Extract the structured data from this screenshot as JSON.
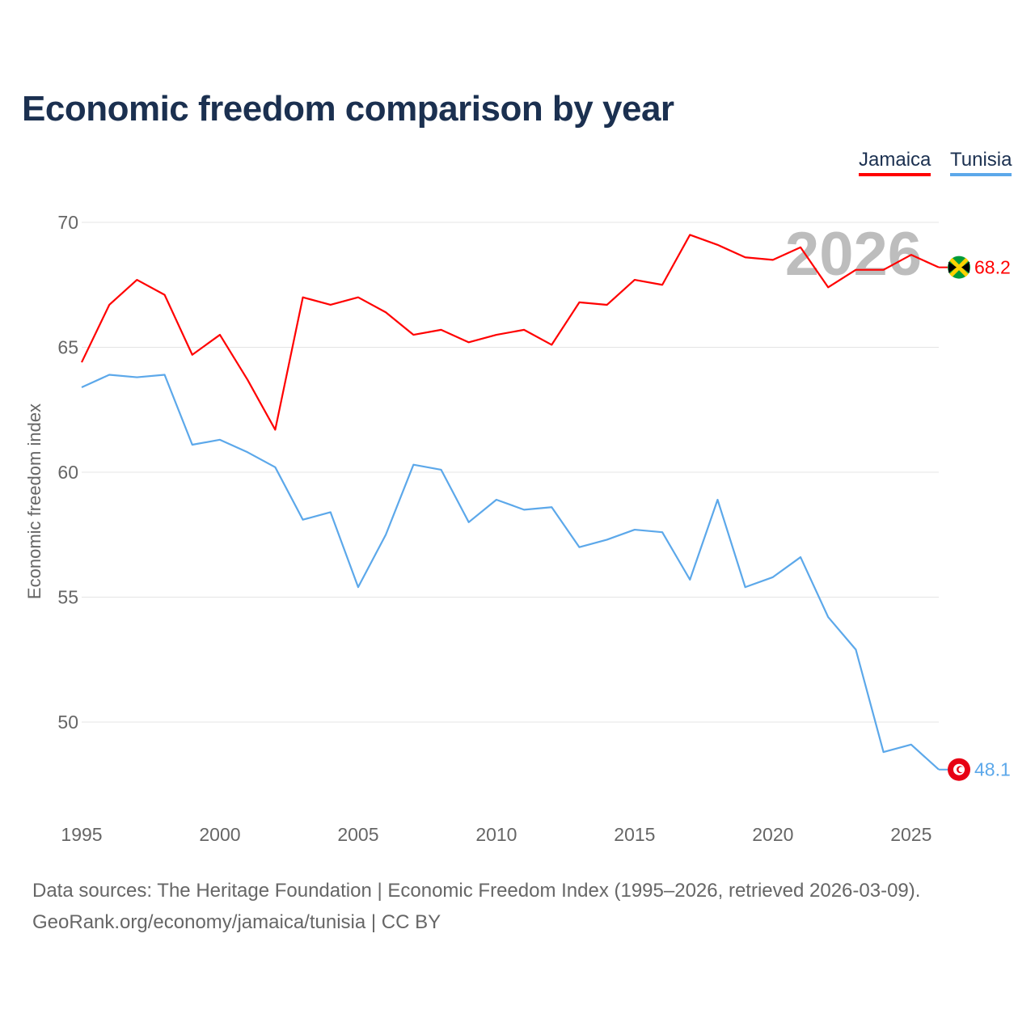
{
  "chart_data": {
    "type": "line",
    "title": "Economic freedom comparison by year",
    "xlabel": "",
    "ylabel": "Economic freedom index",
    "xlim": [
      1995,
      2026
    ],
    "ylim": [
      46.5,
      71.5
    ],
    "yticks": [
      50,
      55,
      60,
      65,
      70
    ],
    "xticks": [
      1995,
      2000,
      2005,
      2010,
      2015,
      2020,
      2025
    ],
    "grid": true,
    "legend_position": "top-right",
    "year_watermark": "2026",
    "x": [
      1995,
      1996,
      1997,
      1998,
      1999,
      2000,
      2001,
      2002,
      2003,
      2004,
      2005,
      2006,
      2007,
      2008,
      2009,
      2010,
      2011,
      2012,
      2013,
      2014,
      2015,
      2016,
      2017,
      2018,
      2019,
      2020,
      2021,
      2022,
      2023,
      2024,
      2025,
      2026
    ],
    "series": [
      {
        "name": "Jamaica",
        "color": "#ff0000",
        "end_label": "68.2",
        "values": [
          64.4,
          66.7,
          67.7,
          67.1,
          64.7,
          65.5,
          63.7,
          61.7,
          67.0,
          66.7,
          67.0,
          66.4,
          65.5,
          65.7,
          65.2,
          65.5,
          65.7,
          65.1,
          66.8,
          66.7,
          67.7,
          67.5,
          69.5,
          69.1,
          68.6,
          68.5,
          69.0,
          67.4,
          68.1,
          68.1,
          68.7,
          68.2
        ]
      },
      {
        "name": "Tunisia",
        "color": "#5ca8ea",
        "end_label": "48.1",
        "values": [
          63.4,
          63.9,
          63.8,
          63.9,
          61.1,
          61.3,
          60.8,
          60.2,
          58.1,
          58.4,
          55.4,
          57.5,
          60.3,
          60.1,
          58.0,
          58.9,
          58.5,
          58.6,
          57.0,
          57.3,
          57.7,
          57.6,
          55.7,
          58.9,
          55.4,
          55.8,
          56.6,
          54.2,
          52.9,
          48.8,
          49.1,
          48.1
        ]
      }
    ]
  },
  "footer": {
    "line1": "Data sources: The Heritage Foundation | Economic Freedom Index (1995–2026, retrieved 2026-03-09).",
    "line2": "GeoRank.org/economy/jamaica/tunisia | CC BY"
  }
}
